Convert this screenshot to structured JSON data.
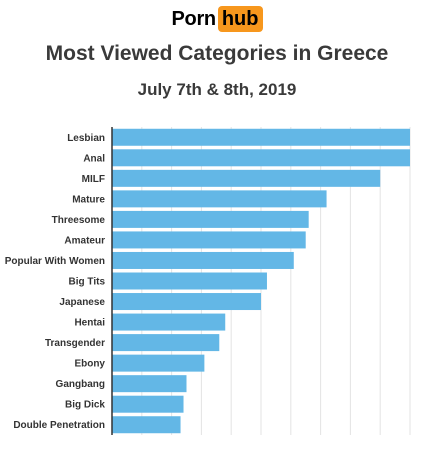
{
  "logo": {
    "part1": "Porn",
    "part2": "hub",
    "box_color": "#f7971d"
  },
  "bar_color": "#63b7e6",
  "chart_data": {
    "type": "bar",
    "orientation": "horizontal",
    "title": "Most Viewed Categories in Greece",
    "subtitle": "July 7th & 8th, 2019",
    "categories": [
      "Lesbian",
      "Anal",
      "MILF",
      "Mature",
      "Threesome",
      "Amateur",
      "Popular With Women",
      "Big Tits",
      "Japanese",
      "Hentai",
      "Transgender",
      "Ebony",
      "Gangbang",
      "Big Dick",
      "Double Penetration"
    ],
    "values": [
      100,
      100,
      90,
      72,
      66,
      65,
      61,
      52,
      50,
      38,
      36,
      31,
      25,
      24,
      23
    ],
    "xlim": [
      0,
      100
    ],
    "grid": true,
    "legend": "none"
  }
}
